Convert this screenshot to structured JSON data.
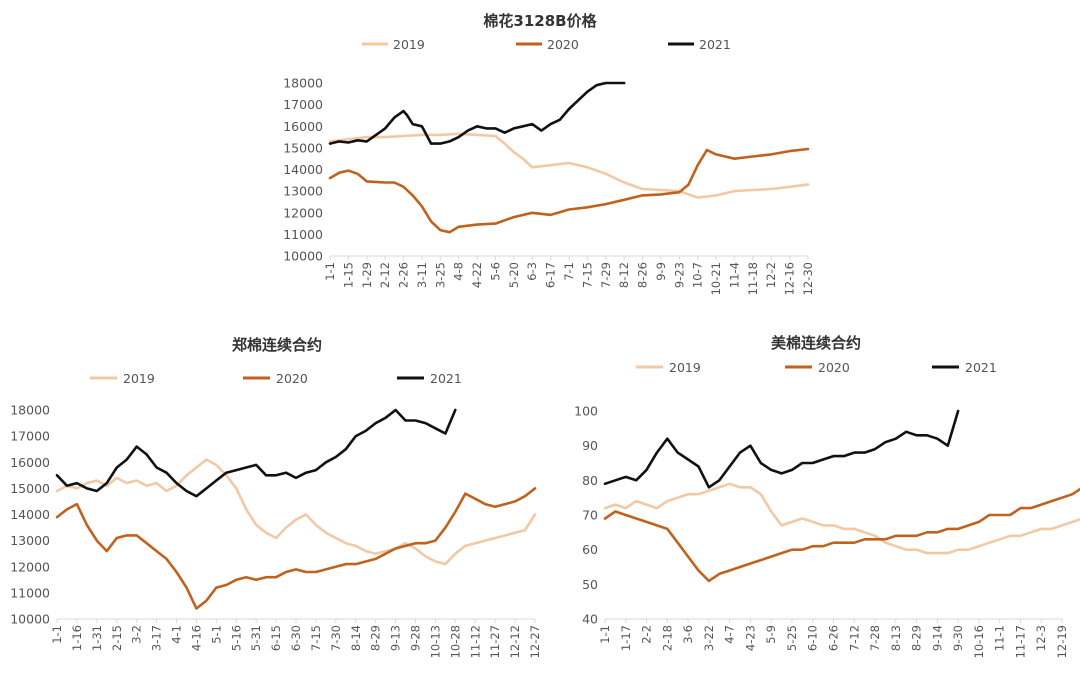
{
  "colors": {
    "2019": "#f2c8a5",
    "2020": "#c0621e",
    "2021": "#111111"
  },
  "chart_data": [
    {
      "type": "line",
      "title": "棉花3128B价格",
      "legend": [
        "2019",
        "2020",
        "2021"
      ],
      "ylim": [
        10000,
        18000
      ],
      "yticks": [
        "10000",
        "11000",
        "12000",
        "13000",
        "14000",
        "15000",
        "16000",
        "17000",
        "18000"
      ],
      "xticks": [
        "1-1",
        "1-15",
        "1-29",
        "2-12",
        "2-26",
        "3-11",
        "3-25",
        "4-8",
        "4-22",
        "5-6",
        "5-20",
        "6-3",
        "6-17",
        "7-1",
        "7-15",
        "7-29",
        "8-12",
        "8-26",
        "9-9",
        "9-23",
        "10-7",
        "10-21",
        "11-4",
        "11-18",
        "12-2",
        "12-16",
        "12-30"
      ],
      "series": [
        {
          "name": "2019",
          "color": "#f2c8a5",
          "x": [
            0,
            1,
            2,
            3,
            4,
            5,
            6,
            7,
            8,
            9,
            9.5,
            10,
            10.5,
            11,
            12,
            13,
            14,
            15,
            16,
            17,
            18,
            19,
            20,
            21,
            22,
            23,
            24,
            25,
            26
          ],
          "y": [
            15300,
            15400,
            15500,
            15500,
            15550,
            15600,
            15600,
            15650,
            15600,
            15550,
            15200,
            14800,
            14500,
            14100,
            14200,
            14300,
            14100,
            13800,
            13400,
            13100,
            13050,
            13000,
            12700,
            12800,
            13000,
            13050,
            13100,
            13200,
            13300
          ]
        },
        {
          "name": "2020",
          "color": "#c0621e",
          "x": [
            0,
            0.5,
            1,
            1.5,
            2,
            3,
            3.5,
            4,
            4.5,
            5,
            5.5,
            6,
            6.5,
            7,
            8,
            9,
            10,
            11,
            12,
            13,
            14,
            15,
            16,
            17,
            18,
            19,
            19.5,
            20,
            20.5,
            21,
            22,
            23,
            24,
            25,
            26
          ],
          "y": [
            13600,
            13850,
            13950,
            13800,
            13450,
            13400,
            13400,
            13200,
            12800,
            12300,
            11600,
            11200,
            11100,
            11350,
            11450,
            11500,
            11800,
            12000,
            11900,
            12150,
            12250,
            12400,
            12600,
            12800,
            12850,
            12950,
            13300,
            14200,
            14900,
            14700,
            14500,
            14600,
            14700,
            14850,
            14950
          ]
        },
        {
          "name": "2021",
          "color": "#111111",
          "x": [
            0,
            0.5,
            1,
            1.5,
            2,
            2.5,
            3,
            3.5,
            4,
            4.2,
            4.5,
            5,
            5.5,
            6,
            6.5,
            7,
            7.5,
            8,
            8.5,
            9,
            9.5,
            10,
            10.5,
            11,
            11.5,
            12,
            12.5,
            13,
            13.5,
            14,
            14.5,
            15,
            15.5,
            16
          ],
          "y": [
            15200,
            15300,
            15250,
            15350,
            15300,
            15600,
            15900,
            16400,
            16700,
            16500,
            16100,
            16000,
            15200,
            15200,
            15300,
            15500,
            15800,
            16000,
            15900,
            15900,
            15700,
            15900,
            16000,
            16100,
            15800,
            16100,
            16300,
            16800,
            17200,
            17600,
            17900,
            18000,
            18000,
            18000
          ]
        }
      ]
    },
    {
      "type": "line",
      "title": "郑棉连续合约",
      "legend": [
        "2019",
        "2020",
        "2021"
      ],
      "ylim": [
        10000,
        18000
      ],
      "yticks": [
        "10000",
        "11000",
        "12000",
        "13000",
        "14000",
        "15000",
        "16000",
        "17000",
        "18000"
      ],
      "xticks": [
        "1-1",
        "1-16",
        "1-31",
        "2-15",
        "3-2",
        "3-17",
        "4-1",
        "4-16",
        "5-1",
        "5-16",
        "5-31",
        "6-15",
        "6-30",
        "7-15",
        "7-30",
        "8-14",
        "8-29",
        "9-13",
        "9-28",
        "10-13",
        "10-28",
        "11-12",
        "11-27",
        "12-12",
        "12-27"
      ],
      "series": [
        {
          "name": "2019",
          "color": "#f2c8a5",
          "x": [
            0,
            0.5,
            1,
            1.5,
            2,
            2.5,
            3,
            3.5,
            4,
            4.5,
            5,
            5.5,
            6,
            6.5,
            7,
            7.5,
            8,
            8.5,
            9,
            9.5,
            10,
            10.5,
            11,
            11.5,
            12,
            12.5,
            13,
            13.5,
            14,
            14.5,
            15,
            15.5,
            16,
            16.5,
            17,
            17.5,
            18,
            18.5,
            19,
            19.5,
            20,
            20.5,
            21,
            21.5,
            22,
            22.5,
            23,
            23.5,
            24
          ],
          "y": [
            14900,
            15100,
            15000,
            15200,
            15300,
            15100,
            15400,
            15200,
            15300,
            15100,
            15200,
            14900,
            15100,
            15500,
            15800,
            16100,
            15900,
            15500,
            15000,
            14200,
            13600,
            13300,
            13100,
            13500,
            13800,
            14000,
            13600,
            13300,
            13100,
            12900,
            12800,
            12600,
            12500,
            12600,
            12700,
            12900,
            12700,
            12400,
            12200,
            12100,
            12500,
            12800,
            12900,
            13000,
            13100,
            13200,
            13300,
            13400,
            14000
          ]
        },
        {
          "name": "2020",
          "color": "#c0621e",
          "x": [
            0,
            0.5,
            1,
            1.5,
            2,
            2.5,
            3,
            3.5,
            4,
            4.5,
            5,
            5.5,
            6,
            6.5,
            7,
            7.5,
            8,
            8.5,
            9,
            9.5,
            10,
            10.5,
            11,
            11.5,
            12,
            12.5,
            13,
            13.5,
            14,
            14.5,
            15,
            15.5,
            16,
            16.5,
            17,
            17.5,
            18,
            18.5,
            19,
            19.5,
            20,
            20.5,
            21,
            21.5,
            22,
            22.5,
            23,
            23.5,
            24
          ],
          "y": [
            13900,
            14200,
            14400,
            13600,
            13000,
            12600,
            13100,
            13200,
            13200,
            12900,
            12600,
            12300,
            11800,
            11200,
            10400,
            10700,
            11200,
            11300,
            11500,
            11600,
            11500,
            11600,
            11600,
            11800,
            11900,
            11800,
            11800,
            11900,
            12000,
            12100,
            12100,
            12200,
            12300,
            12500,
            12700,
            12800,
            12900,
            12900,
            13000,
            13500,
            14100,
            14800,
            14600,
            14400,
            14300,
            14400,
            14500,
            14700,
            15000
          ]
        },
        {
          "name": "2021",
          "color": "#111111",
          "x": [
            0,
            0.5,
            1,
            1.5,
            2,
            2.5,
            3,
            3.5,
            4,
            4.5,
            5,
            5.5,
            6,
            6.5,
            7,
            7.5,
            8,
            8.5,
            9,
            9.5,
            10,
            10.5,
            11,
            11.5,
            12,
            12.5,
            13,
            13.5,
            14,
            14.5,
            15,
            15.5,
            16,
            16.5,
            17,
            17.5,
            18,
            18.5,
            19,
            19.5,
            20
          ],
          "y": [
            15500,
            15100,
            15200,
            15000,
            14900,
            15200,
            15800,
            16100,
            16600,
            16300,
            15800,
            15600,
            15200,
            14900,
            14700,
            15000,
            15300,
            15600,
            15700,
            15800,
            15900,
            15500,
            15500,
            15600,
            15400,
            15600,
            15700,
            16000,
            16200,
            16500,
            17000,
            17200,
            17500,
            17700,
            18000,
            17600,
            17600,
            17500,
            17300,
            17100,
            18000
          ]
        }
      ]
    },
    {
      "type": "line",
      "title": "美棉连续合约",
      "legend": [
        "2019",
        "2020",
        "2021"
      ],
      "ylim": [
        40,
        100
      ],
      "yticks": [
        "40",
        "50",
        "60",
        "70",
        "80",
        "90",
        "100"
      ],
      "xticks": [
        "1-1",
        "1-17",
        "2-2",
        "2-18",
        "3-6",
        "3-22",
        "4-7",
        "4-23",
        "5-9",
        "5-25",
        "6-10",
        "6-26",
        "7-12",
        "7-28",
        "8-13",
        "8-29",
        "9-14",
        "9-30",
        "10-16",
        "11-1",
        "11-17",
        "12-3",
        "12-19"
      ],
      "series": [
        {
          "name": "2019",
          "color": "#f2c8a5",
          "x": [
            0,
            0.5,
            1,
            1.5,
            2,
            2.5,
            3,
            3.5,
            4,
            4.5,
            5,
            5.5,
            6,
            6.5,
            7,
            7.5,
            8,
            8.5,
            9,
            9.5,
            10,
            10.5,
            11,
            11.5,
            12,
            12.5,
            13,
            13.5,
            14,
            14.5,
            15,
            15.5,
            16,
            16.5,
            17,
            17.5,
            18,
            18.5,
            19,
            19.5,
            20,
            20.5,
            21,
            21.5,
            22,
            22.5,
            23
          ],
          "y": [
            72,
            73,
            72,
            74,
            73,
            72,
            74,
            75,
            76,
            76,
            77,
            78,
            79,
            78,
            78,
            76,
            71,
            67,
            68,
            69,
            68,
            67,
            67,
            66,
            66,
            65,
            64,
            62,
            61,
            60,
            60,
            59,
            59,
            59,
            60,
            60,
            61,
            62,
            63,
            64,
            64,
            65,
            66,
            66,
            67,
            68,
            69
          ]
        },
        {
          "name": "2020",
          "color": "#c0621e",
          "x": [
            0,
            0.5,
            1,
            1.5,
            2,
            2.5,
            3,
            3.5,
            4,
            4.5,
            5,
            5.5,
            6,
            6.5,
            7,
            7.5,
            8,
            8.5,
            9,
            9.5,
            10,
            10.5,
            11,
            11.5,
            12,
            12.5,
            13,
            13.5,
            14,
            14.5,
            15,
            15.5,
            16,
            16.5,
            17,
            17.5,
            18,
            18.5,
            19,
            19.5,
            20,
            20.5,
            21,
            21.5,
            22,
            22.5,
            23
          ],
          "y": [
            69,
            71,
            70,
            69,
            68,
            67,
            66,
            62,
            58,
            54,
            51,
            53,
            54,
            55,
            56,
            57,
            58,
            59,
            60,
            60,
            61,
            61,
            62,
            62,
            62,
            63,
            63,
            63,
            64,
            64,
            64,
            65,
            65,
            66,
            66,
            67,
            68,
            70,
            70,
            70,
            72,
            72,
            73,
            74,
            75,
            76,
            78
          ]
        },
        {
          "name": "2021",
          "color": "#111111",
          "x": [
            0,
            0.5,
            1,
            1.5,
            2,
            2.5,
            3,
            3.5,
            4,
            4.5,
            5,
            5.5,
            6,
            6.5,
            7,
            7.5,
            8,
            8.5,
            9,
            9.5,
            10,
            10.5,
            11,
            11.5,
            12,
            12.5,
            13,
            13.5,
            14,
            14.5,
            15,
            15.5,
            16,
            16.5,
            17
          ],
          "y": [
            79,
            80,
            81,
            80,
            83,
            88,
            92,
            88,
            86,
            84,
            78,
            80,
            84,
            88,
            90,
            85,
            83,
            82,
            83,
            85,
            85,
            86,
            87,
            87,
            88,
            88,
            89,
            91,
            92,
            94,
            93,
            93,
            92,
            90,
            100
          ]
        }
      ]
    }
  ]
}
